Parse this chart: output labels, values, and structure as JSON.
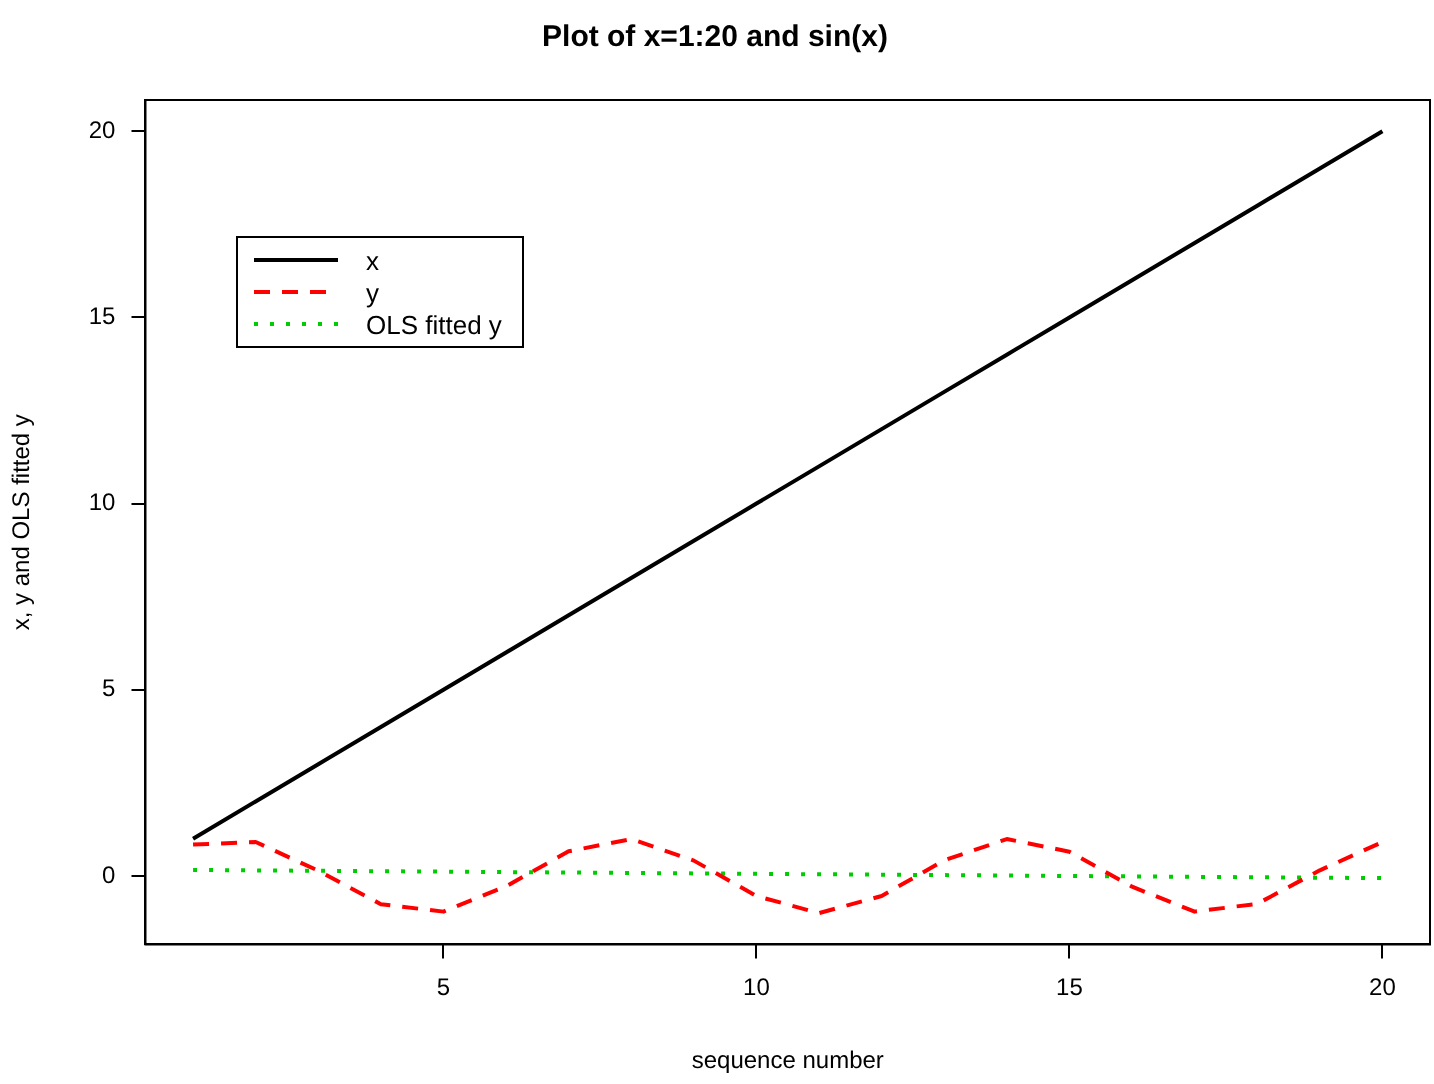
{
  "chart_data": {
    "type": "line",
    "title": "Plot of x=1:20 and sin(x)",
    "xlabel": "sequence number",
    "ylabel": "x, y and OLS fitted y",
    "x": [
      1,
      2,
      3,
      4,
      5,
      6,
      7,
      8,
      9,
      10,
      11,
      12,
      13,
      14,
      15,
      16,
      17,
      18,
      19,
      20
    ],
    "series": [
      {
        "name": "x",
        "color": "#000000",
        "line_style": "solid",
        "values": [
          1,
          2,
          3,
          4,
          5,
          6,
          7,
          8,
          9,
          10,
          11,
          12,
          13,
          14,
          15,
          16,
          17,
          18,
          19,
          20
        ]
      },
      {
        "name": "y",
        "color": "#ff0000",
        "line_style": "dashed",
        "values": [
          0.84,
          0.91,
          0.14,
          -0.76,
          -0.96,
          -0.28,
          0.66,
          0.99,
          0.41,
          -0.54,
          -1.0,
          -0.54,
          0.42,
          0.99,
          0.65,
          -0.29,
          -0.96,
          -0.75,
          0.15,
          0.91
        ]
      },
      {
        "name": "OLS fitted y",
        "color": "#00cd00",
        "line_style": "dotted",
        "x": [
          1,
          20
        ],
        "values": [
          0.16,
          -0.06
        ]
      }
    ],
    "xlim": [
      0.24,
      20.76
    ],
    "ylim": [
      -1.84,
      20.84
    ],
    "xticks": [
      5,
      10,
      15,
      20
    ],
    "yticks": [
      0,
      5,
      10,
      15,
      20
    ],
    "legend": "top left",
    "grid": false,
    "marker": "none"
  }
}
